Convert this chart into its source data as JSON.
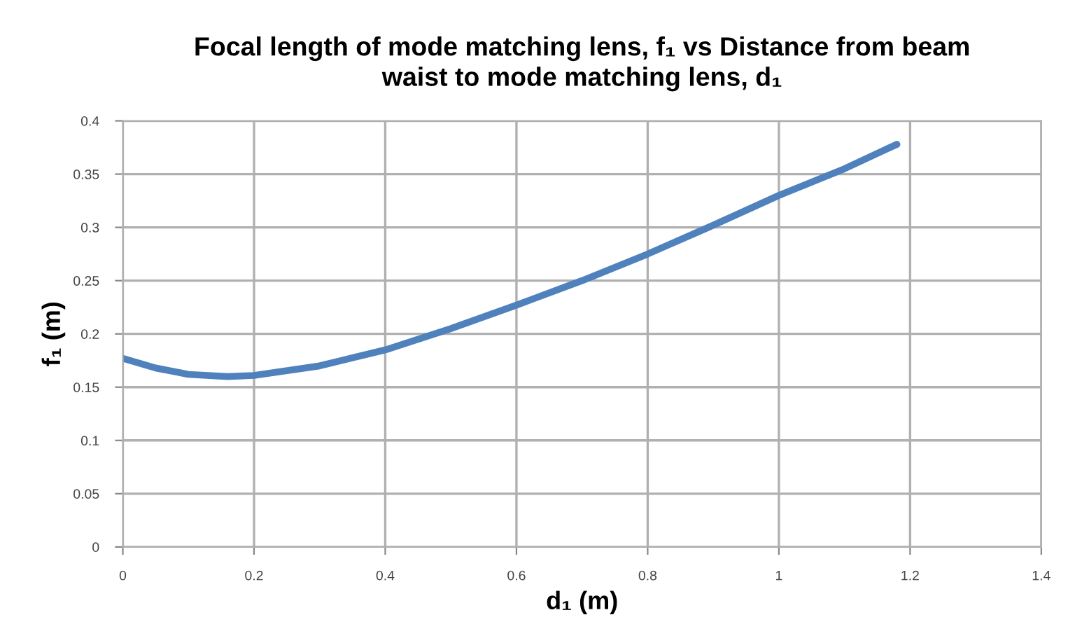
{
  "chart_data": {
    "type": "line",
    "title": "Focal length of mode matching lens, f₁ vs Distance from beam\nwaist to mode matching lens, d₁",
    "xlabel": "d₁ (m)",
    "ylabel": "f₁ (m)",
    "x": [
      0,
      0.05,
      0.1,
      0.16,
      0.2,
      0.3,
      0.4,
      0.5,
      0.6,
      0.7,
      0.8,
      0.9,
      1.0,
      1.1,
      1.18
    ],
    "series": [
      {
        "color": "#4f81bd",
        "values": [
          0.177,
          0.168,
          0.162,
          0.16,
          0.161,
          0.17,
          0.185,
          0.205,
          0.227,
          0.25,
          0.275,
          0.302,
          0.33,
          0.355,
          0.378
        ]
      }
    ],
    "xlim": [
      0,
      1.4
    ],
    "xticks": [
      0,
      0.2,
      0.4,
      0.6,
      0.8,
      1,
      1.2,
      1.4
    ],
    "ylim": [
      0,
      0.4
    ],
    "yticks": [
      0,
      0.05,
      0.1,
      0.15,
      0.2,
      0.25,
      0.3,
      0.35,
      0.4
    ],
    "grid": true,
    "marker": "none",
    "line_style": "solid"
  }
}
